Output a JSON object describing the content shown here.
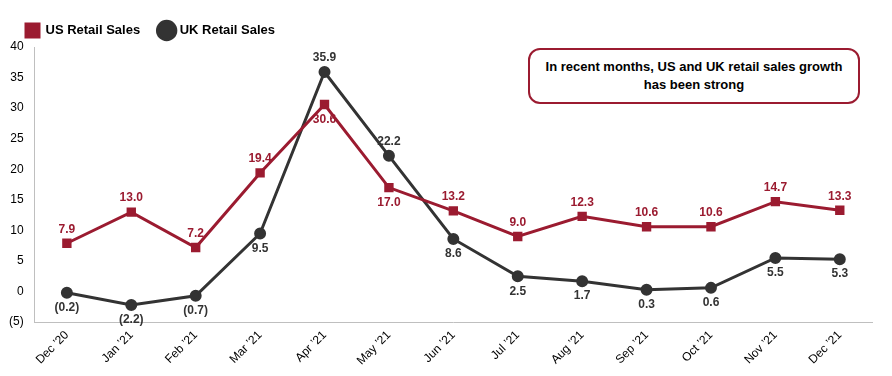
{
  "chart_data": {
    "type": "line",
    "categories": [
      "Dec ’20",
      "Jan ’21",
      "Feb ’21",
      "Mar ’21",
      "Apr ’21",
      "May ’21",
      "Jun ’21",
      "Jul ’21",
      "Aug ’21",
      "Sep ’21",
      "Oct ’21",
      "Nov ’21",
      "Dec ’21"
    ],
    "series": [
      {
        "name": "US Retail Sales",
        "color": "#9b1b30",
        "marker": "square",
        "values": [
          7.9,
          13.0,
          7.2,
          19.4,
          30.6,
          17.0,
          13.2,
          9.0,
          12.3,
          10.6,
          10.6,
          14.7,
          13.3
        ],
        "value_labels": [
          "7.9",
          "13.0",
          "7.2",
          "19.4",
          "30.6",
          "17.0",
          "13.2",
          "9.0",
          "12.3",
          "10.6",
          "10.6",
          "14.7",
          "13.3"
        ]
      },
      {
        "name": "UK Retail Sales",
        "color": "#333333",
        "marker": "circle",
        "values": [
          -0.2,
          -2.2,
          -0.7,
          9.5,
          35.9,
          22.2,
          8.6,
          2.5,
          1.7,
          0.3,
          0.6,
          5.5,
          5.3
        ],
        "value_labels": [
          "(0.2)",
          "(2.2)",
          "(0.7)",
          "9.5",
          "35.9",
          "22.2",
          "8.6",
          "2.5",
          "1.7",
          "0.3",
          "0.6",
          "5.5",
          "5.3"
        ]
      }
    ],
    "annotations": [
      "In recent months, US and UK retail sales growth has been strong"
    ],
    "ylim": [
      -5,
      40
    ],
    "yticks": [
      {
        "value": -5,
        "label": "(5)"
      },
      0,
      5,
      10,
      15,
      20,
      25,
      30,
      35,
      40
    ],
    "grid": false,
    "legend": "top-left",
    "data_labels": true
  }
}
